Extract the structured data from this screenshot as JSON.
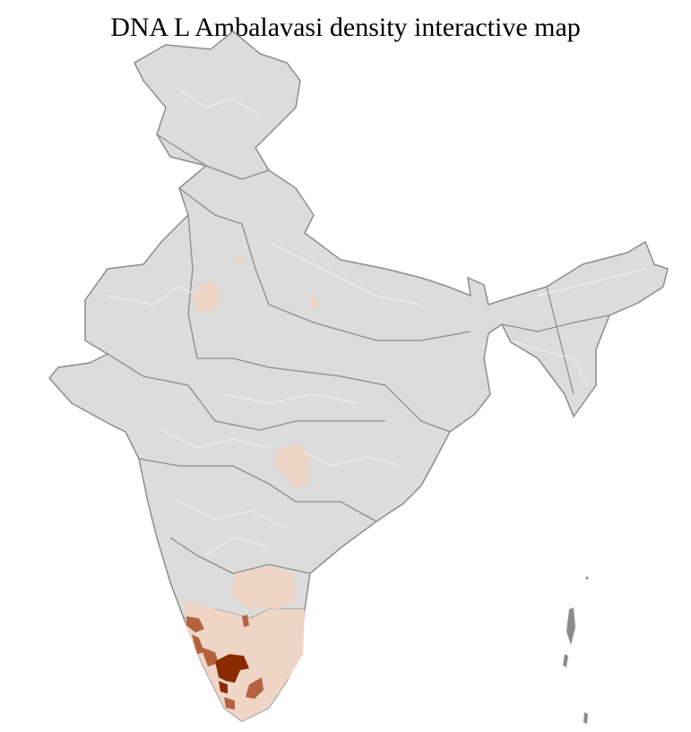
{
  "title": "DNA L Ambalavasi density interactive map",
  "colors": {
    "no_data": "#dcdcdc",
    "low": "#efd5c6",
    "medium": "#b5623f",
    "high": "#8a2a00",
    "border": "#8c8c8c"
  }
}
